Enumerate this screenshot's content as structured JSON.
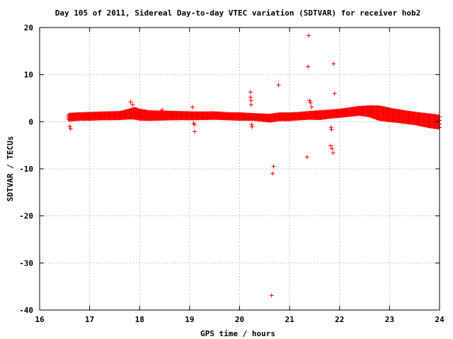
{
  "chart_data": {
    "type": "scatter",
    "title": "Day 105 of 2011, Sidereal Day-to-day VTEC variation (SDTVAR) for receiver hob2",
    "xlabel": "GPS time / hours",
    "ylabel": "SDTVAR / TECUs",
    "xlim": [
      16,
      24
    ],
    "ylim": [
      -40,
      20
    ],
    "xticks": [
      "16",
      "17",
      "18",
      "19",
      "20",
      "21",
      "22",
      "23",
      "24"
    ],
    "yticks": [
      "20",
      "10",
      "0",
      "-10",
      "-20",
      "-30",
      "-40"
    ],
    "grid": true,
    "marker": "plus",
    "color": "#ff0000",
    "band": [
      [
        16.58,
        0.3,
        1.6
      ],
      [
        16.8,
        0.5,
        1.7
      ],
      [
        17.0,
        0.5,
        1.8
      ],
      [
        17.3,
        0.6,
        1.9
      ],
      [
        17.6,
        0.6,
        2.0
      ],
      [
        17.8,
        0.7,
        2.6
      ],
      [
        17.9,
        0.6,
        3.0
      ],
      [
        18.0,
        0.4,
        2.6
      ],
      [
        18.2,
        0.4,
        2.2
      ],
      [
        18.5,
        0.5,
        2.1
      ],
      [
        18.8,
        0.6,
        2.0
      ],
      [
        19.1,
        0.6,
        1.9
      ],
      [
        19.5,
        0.7,
        1.9
      ],
      [
        19.8,
        0.6,
        1.7
      ],
      [
        20.0,
        0.5,
        1.7
      ],
      [
        20.3,
        0.5,
        1.5
      ],
      [
        20.6,
        0.1,
        1.4
      ],
      [
        20.8,
        0.4,
        1.7
      ],
      [
        21.0,
        0.4,
        1.7
      ],
      [
        21.2,
        0.6,
        1.8
      ],
      [
        21.4,
        0.7,
        2.0
      ],
      [
        21.6,
        0.6,
        2.2
      ],
      [
        21.8,
        0.9,
        2.3
      ],
      [
        22.0,
        1.1,
        2.5
      ],
      [
        22.2,
        1.3,
        2.8
      ],
      [
        22.4,
        1.5,
        3.1
      ],
      [
        22.6,
        1.1,
        3.3
      ],
      [
        22.8,
        0.2,
        3.4
      ],
      [
        23.0,
        0.0,
        2.9
      ],
      [
        23.2,
        -0.2,
        2.5
      ],
      [
        23.5,
        -0.6,
        2.0
      ],
      [
        23.8,
        -1.3,
        1.7
      ],
      [
        24.0,
        -1.6,
        1.4
      ]
    ],
    "outliers": [
      {
        "x": 16.6,
        "y": -1.0
      },
      {
        "x": 16.62,
        "y": -1.5
      },
      {
        "x": 17.82,
        "y": 4.2
      },
      {
        "x": 17.86,
        "y": 3.6
      },
      {
        "x": 18.45,
        "y": 2.5
      },
      {
        "x": 19.06,
        "y": 3.1
      },
      {
        "x": 19.08,
        "y": -0.3
      },
      {
        "x": 19.1,
        "y": -0.6
      },
      {
        "x": 19.1,
        "y": -2.1
      },
      {
        "x": 20.22,
        "y": 6.3
      },
      {
        "x": 20.22,
        "y": 5.2
      },
      {
        "x": 20.23,
        "y": 4.5
      },
      {
        "x": 20.23,
        "y": 3.6
      },
      {
        "x": 20.24,
        "y": -0.6
      },
      {
        "x": 20.25,
        "y": -1.1
      },
      {
        "x": 20.64,
        "y": -36.9
      },
      {
        "x": 20.66,
        "y": -11.0
      },
      {
        "x": 20.68,
        "y": -9.5
      },
      {
        "x": 20.78,
        "y": 7.8
      },
      {
        "x": 21.35,
        "y": -7.5
      },
      {
        "x": 21.37,
        "y": 11.7
      },
      {
        "x": 21.38,
        "y": 18.3
      },
      {
        "x": 21.4,
        "y": 4.5
      },
      {
        "x": 21.42,
        "y": 4.0
      },
      {
        "x": 21.44,
        "y": 3.1
      },
      {
        "x": 21.83,
        "y": -1.2
      },
      {
        "x": 21.84,
        "y": -1.7
      },
      {
        "x": 21.82,
        "y": -5.1
      },
      {
        "x": 21.85,
        "y": -5.7
      },
      {
        "x": 21.87,
        "y": -6.6
      },
      {
        "x": 21.88,
        "y": 12.3
      },
      {
        "x": 21.9,
        "y": 6.0
      }
    ]
  }
}
